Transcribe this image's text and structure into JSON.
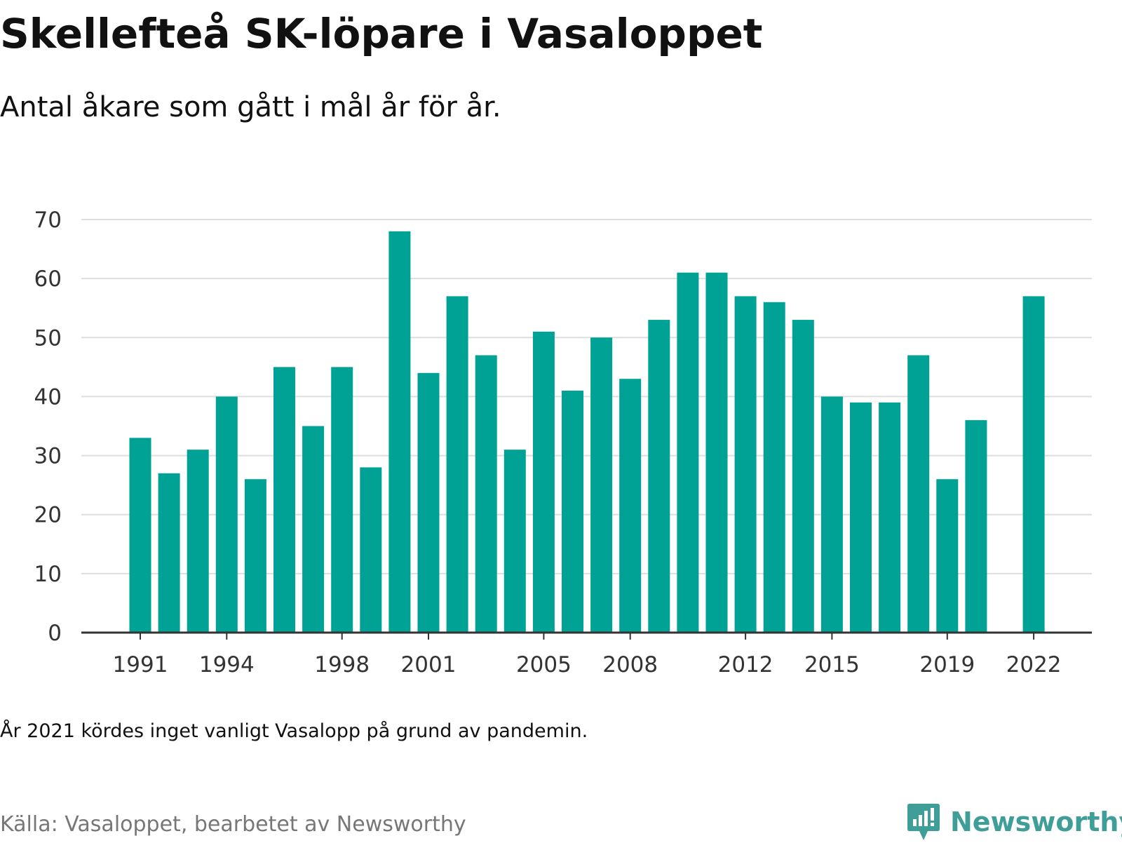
{
  "title": "Skellefteå SK-löpare i Vasaloppet",
  "subtitle": "Antal åkare som gått i mål år för år.",
  "note": "År 2021 kördes inget vanligt Vasalopp på grund av pandemin.",
  "source": "Källa: Vasaloppet, bearbetet av Newsworthy",
  "brand": {
    "name": "Newsworthy",
    "icon": "newsworthy-chart-bubble-icon",
    "color": "#3f9e98"
  },
  "chart_data": {
    "type": "bar",
    "color": "#00a296",
    "grid": true,
    "ylim": [
      0,
      70
    ],
    "yticks": [
      0,
      10,
      20,
      30,
      40,
      50,
      60,
      70
    ],
    "categories": [
      1991,
      1992,
      1993,
      1994,
      1995,
      1996,
      1997,
      1998,
      1999,
      2000,
      2001,
      2002,
      2003,
      2004,
      2005,
      2006,
      2007,
      2008,
      2009,
      2010,
      2011,
      2012,
      2013,
      2014,
      2015,
      2016,
      2017,
      2018,
      2019,
      2020,
      2021,
      2022
    ],
    "values": [
      33,
      27,
      31,
      40,
      26,
      45,
      35,
      45,
      28,
      68,
      44,
      57,
      47,
      31,
      51,
      41,
      50,
      43,
      53,
      61,
      61,
      57,
      56,
      53,
      40,
      39,
      39,
      47,
      26,
      36,
      null,
      57
    ],
    "xtick_labels": [
      "1991",
      "1994",
      "1998",
      "2001",
      "2005",
      "2008",
      "2012",
      "2015",
      "2019",
      "2022"
    ],
    "xlabel": "",
    "ylabel": ""
  }
}
